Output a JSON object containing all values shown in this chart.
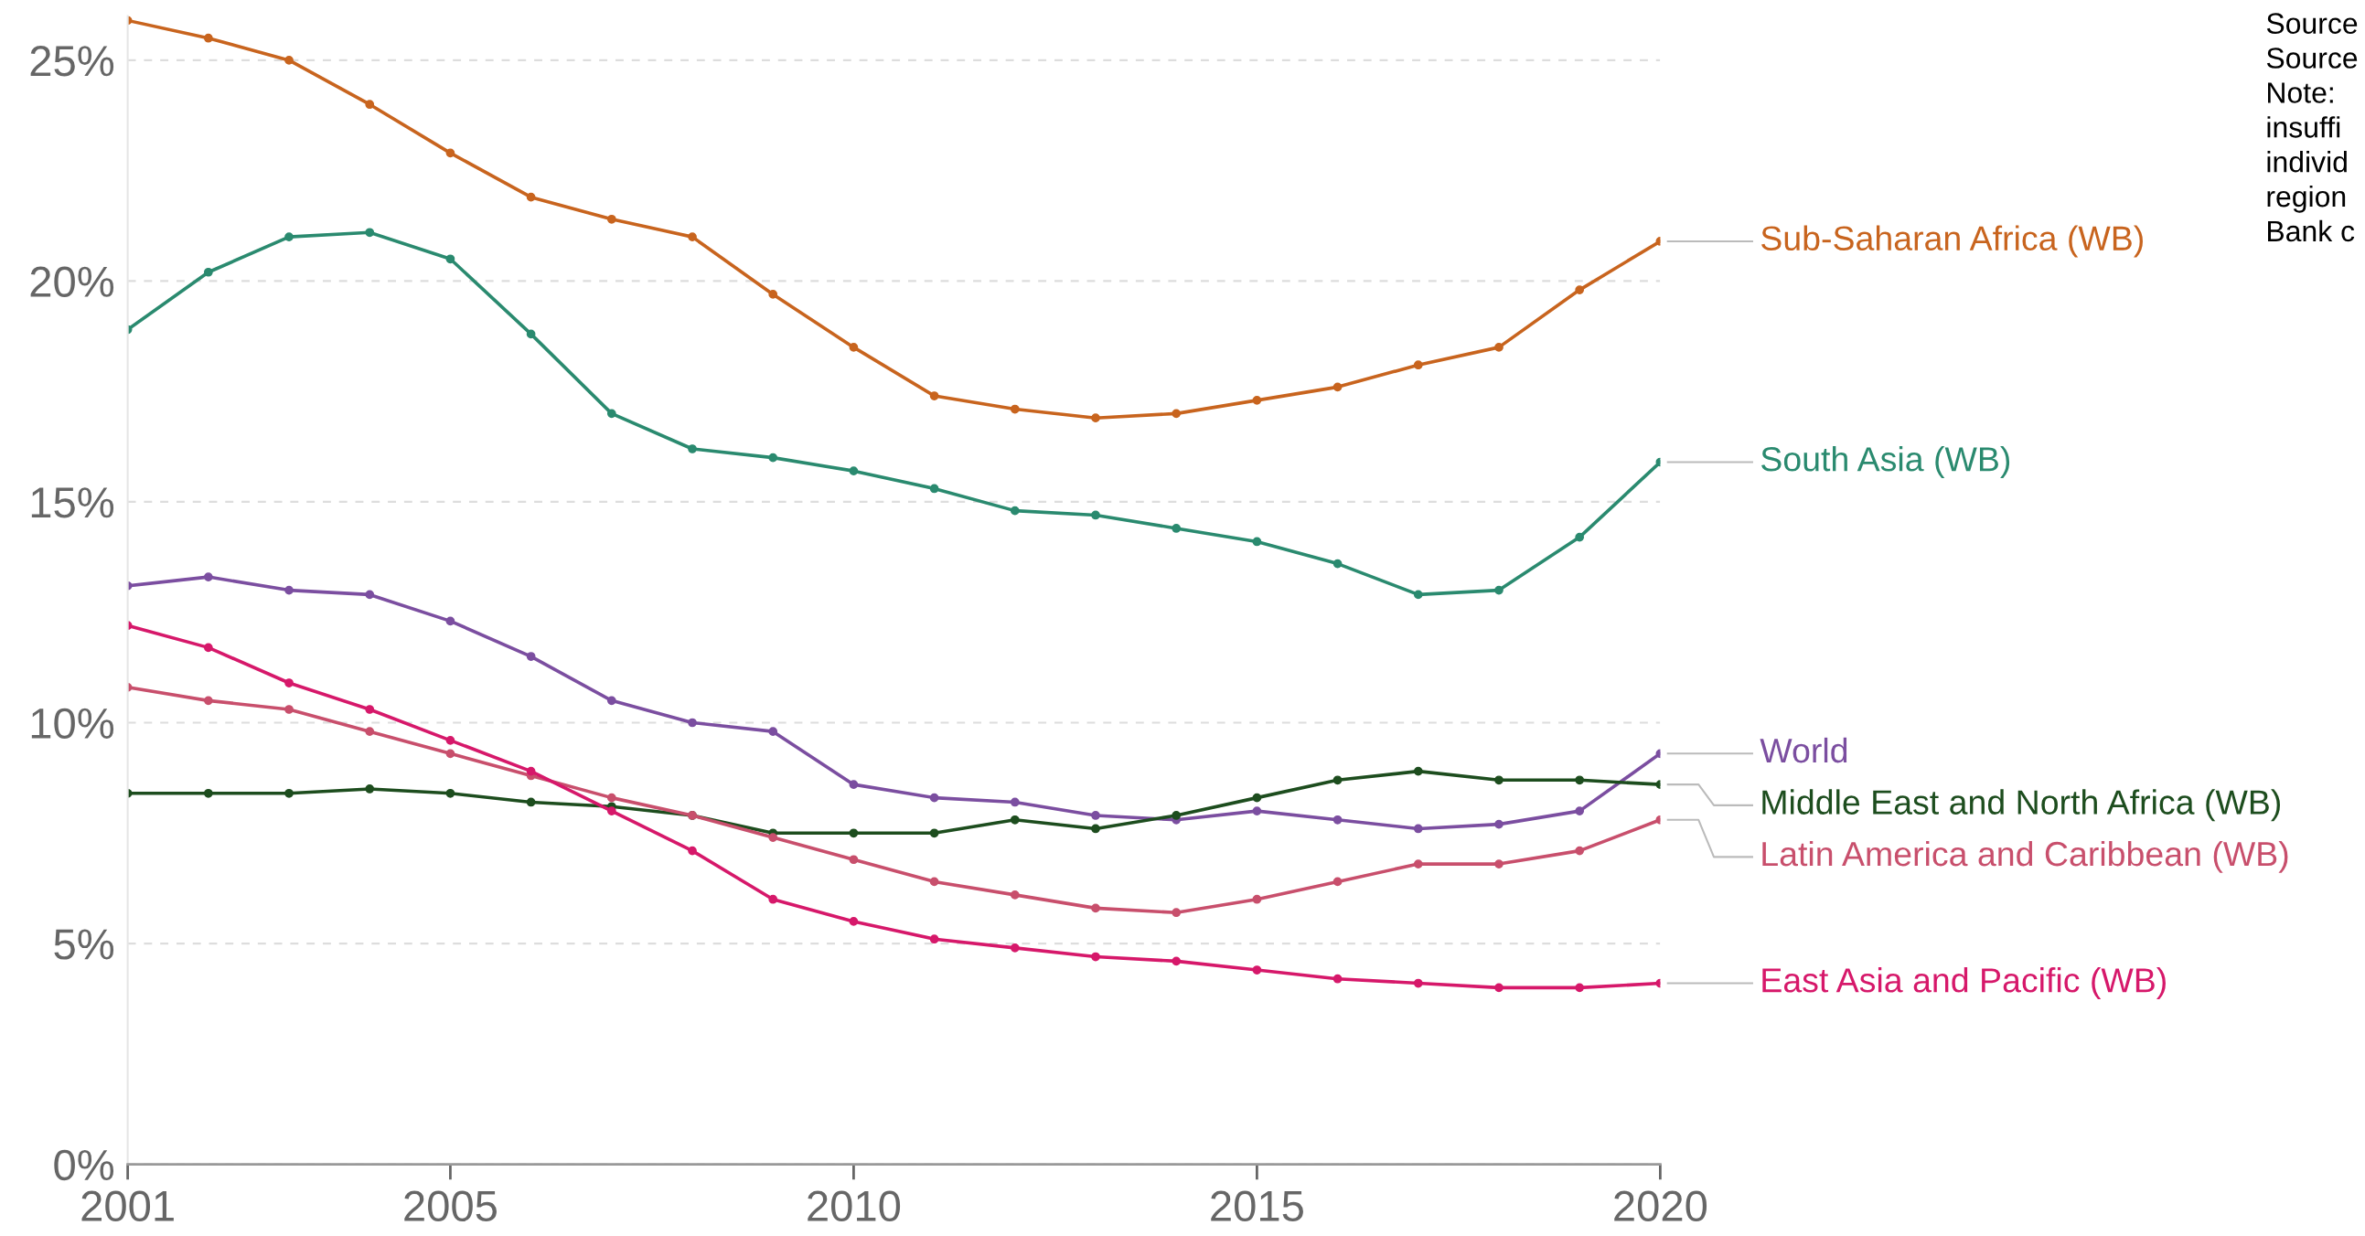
{
  "chart_data": {
    "type": "line",
    "x": [
      2001,
      2002,
      2003,
      2004,
      2005,
      2006,
      2007,
      2008,
      2009,
      2010,
      2011,
      2012,
      2013,
      2014,
      2015,
      2016,
      2017,
      2018,
      2019,
      2020
    ],
    "series": [
      {
        "name": "Sub-Saharan Africa (WB)",
        "color": "#c8641e",
        "values": [
          25.9,
          25.5,
          25.0,
          24.0,
          22.9,
          21.9,
          21.4,
          21.0,
          19.7,
          18.5,
          17.4,
          17.1,
          16.9,
          17.0,
          17.3,
          17.6,
          18.1,
          18.5,
          19.8,
          20.9
        ]
      },
      {
        "name": "South Asia (WB)",
        "color": "#2a8a6f",
        "values": [
          18.9,
          20.2,
          21.0,
          21.1,
          20.5,
          18.8,
          17.0,
          16.2,
          16.0,
          15.7,
          15.3,
          14.8,
          14.7,
          14.4,
          14.1,
          13.6,
          12.9,
          13.0,
          14.2,
          15.9
        ]
      },
      {
        "name": "World",
        "color": "#7b4ea0",
        "values": [
          13.1,
          13.3,
          13.0,
          12.9,
          12.3,
          11.5,
          10.5,
          10.0,
          9.8,
          8.6,
          8.3,
          8.2,
          7.9,
          7.8,
          8.0,
          7.8,
          7.6,
          7.7,
          8.0,
          9.3
        ]
      },
      {
        "name": "Middle East and North Africa (WB)",
        "color": "#1d4d1e",
        "values": [
          8.4,
          8.4,
          8.4,
          8.5,
          8.4,
          8.2,
          8.1,
          7.9,
          7.5,
          7.5,
          7.5,
          7.8,
          7.6,
          7.9,
          8.3,
          8.7,
          8.9,
          8.7,
          8.7,
          8.6
        ]
      },
      {
        "name": "Latin America and Caribbean (WB)",
        "color": "#c84f6c",
        "values": [
          10.8,
          10.5,
          10.3,
          9.8,
          9.3,
          8.8,
          8.3,
          7.9,
          7.4,
          6.9,
          6.4,
          6.1,
          5.8,
          5.7,
          6.0,
          6.4,
          6.8,
          6.8,
          7.1,
          7.8
        ]
      },
      {
        "name": "East Asia and Pacific (WB)",
        "color": "#d6186a",
        "values": [
          12.2,
          11.7,
          10.9,
          10.3,
          9.6,
          8.9,
          8.0,
          7.1,
          6.0,
          5.5,
          5.1,
          4.9,
          4.7,
          4.6,
          4.4,
          4.2,
          4.1,
          4.0,
          4.0,
          4.1
        ]
      }
    ],
    "xlim": [
      2001,
      2020
    ],
    "xticks": [
      2001,
      2005,
      2010,
      2015,
      2020
    ],
    "ylim": [
      0,
      26
    ],
    "yticks": [
      {
        "value": 0,
        "label": "0%"
      },
      {
        "value": 5,
        "label": "5%"
      },
      {
        "value": 10,
        "label": "10%"
      },
      {
        "value": 15,
        "label": "15%"
      },
      {
        "value": 20,
        "label": "20%"
      },
      {
        "value": 25,
        "label": "25%"
      }
    ],
    "grid": "y",
    "legend": false,
    "marker": "circle",
    "line_style": "solid",
    "annotations": [
      "Source\nSource\nNote:\ninsuffi\nindivid\nregion\nBank c"
    ]
  }
}
